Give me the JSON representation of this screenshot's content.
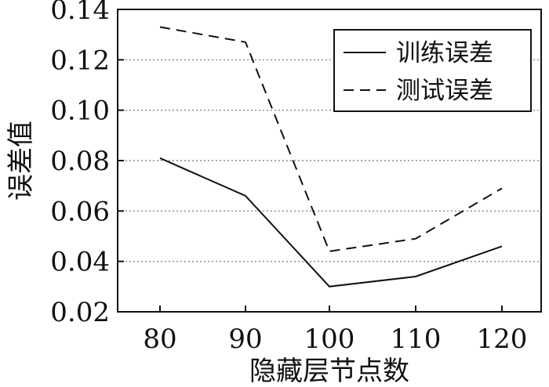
{
  "chart_data": {
    "type": "line",
    "title": "",
    "xlabel": "隐藏层节点数",
    "ylabel": "误差值",
    "x": [
      "80",
      "90",
      "100",
      "110",
      "120"
    ],
    "ylim": [
      0.02,
      0.14
    ],
    "yticks": [
      "0.02",
      "0.04",
      "0.06",
      "0.08",
      "0.10",
      "0.12",
      "0.14"
    ],
    "grid": "y-dotted",
    "legend_position": "top-right",
    "series": [
      {
        "name": "训练误差",
        "style": "solid",
        "color": "#111111",
        "values": [
          0.081,
          0.066,
          0.03,
          0.034,
          0.046
        ]
      },
      {
        "name": "测试误差",
        "style": "dashed",
        "color": "#111111",
        "values": [
          0.133,
          0.127,
          0.044,
          0.049,
          0.069
        ]
      }
    ]
  }
}
